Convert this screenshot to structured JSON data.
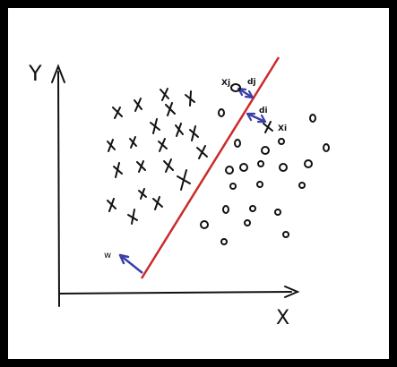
{
  "labels": {
    "y_axis": "Y",
    "x_axis": "X",
    "w": "w",
    "xj": "Xj",
    "dj": "dj",
    "di": "di",
    "xi": "Xi"
  },
  "colors": {
    "separator": "#cc2a2a",
    "vectors": "#3b3fa8",
    "ink": "#111111",
    "border": "#000000"
  },
  "class_markers": {
    "cross_class": "x",
    "circle_class": "o"
  }
}
